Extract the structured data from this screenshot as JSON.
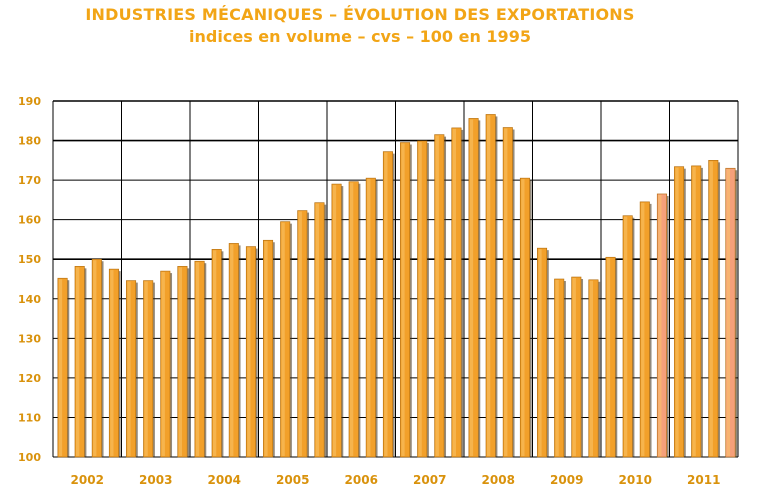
{
  "title_line1": "INDUSTRIES MÉCANIQUES – ÉVOLUTION DES EXPORTATIONS",
  "title_line2": "indices en volume – cvs – 100 en 1995",
  "colors": {
    "title": "#f2a516",
    "bar_fill": "#f2a02a",
    "bar_highlight": "#f5a07a",
    "bar_shadow": "#3a2a10",
    "grid": "#000000",
    "tick_text": "#d9920c"
  },
  "chart_data": {
    "type": "bar",
    "title": "INDUSTRIES MÉCANIQUES – ÉVOLUTION DES EXPORTATIONS",
    "subtitle": "indices en volume – cvs – 100 en 1995",
    "ylim": [
      100,
      190
    ],
    "yticks": [
      100,
      110,
      120,
      130,
      140,
      150,
      160,
      170,
      180,
      190
    ],
    "grid": true,
    "years": [
      "2002",
      "2003",
      "2004",
      "2005",
      "2006",
      "2007",
      "2008",
      "2009",
      "2010",
      "2011"
    ],
    "series": [
      {
        "values": [
          145.2,
          148.2,
          150.0,
          147.5,
          144.6,
          144.6,
          147.0,
          148.2,
          149.5,
          152.5,
          154.0,
          153.2,
          154.8,
          159.5,
          162.3,
          164.3,
          169.0,
          169.6,
          170.5,
          177.2,
          179.5,
          179.9,
          181.5,
          183.2,
          185.6,
          186.6,
          183.3,
          170.5,
          152.8,
          145.0,
          145.5,
          144.8,
          150.5,
          161.0,
          164.5,
          166.5,
          173.4,
          173.6,
          175.0,
          173.0
        ]
      }
    ]
  }
}
